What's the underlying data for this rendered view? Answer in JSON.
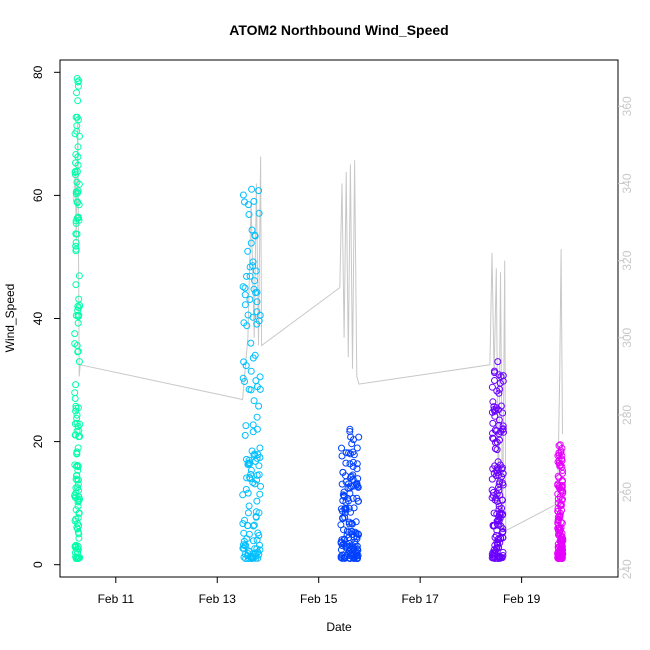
{
  "chart_data": {
    "type": "scatter",
    "title": "ATOM2 Northbound Wind_Speed",
    "xlabel": "Date",
    "ylabel": "Wind_Speed",
    "x_range": [
      "2024-02-09T21:36",
      "2024-02-20T21:36"
    ],
    "y_range": [
      -2,
      82
    ],
    "y_ticks": [
      0,
      20,
      40,
      60,
      80
    ],
    "x_ticks": [
      {
        "label": "Feb 11",
        "date": "2024-02-11"
      },
      {
        "label": "Feb 13",
        "date": "2024-02-13"
      },
      {
        "label": "Feb 15",
        "date": "2024-02-15"
      },
      {
        "label": "Feb 17",
        "date": "2024-02-17"
      },
      {
        "label": "Feb 19",
        "date": "2024-02-19"
      }
    ],
    "y2_range": [
      238,
      372
    ],
    "y2_ticks": [
      240,
      260,
      280,
      300,
      320,
      340,
      360
    ],
    "series": [
      {
        "color": "#00ffaa",
        "x_start": "2024-02-10T04:30",
        "x_end": "2024-02-10T07:00",
        "y_min": 1,
        "y_max": 79
      },
      {
        "color": "#00bfff",
        "x_start": "2024-02-13T12:00",
        "x_end": "2024-02-13T20:30",
        "y_min": 1,
        "y_max": 61
      },
      {
        "color": "#0040ff",
        "x_start": "2024-02-15T10:30",
        "x_end": "2024-02-15T19:00",
        "y_min": 1,
        "y_max": 22
      },
      {
        "color": "#6a00ff",
        "x_start": "2024-02-18T10:00",
        "x_end": "2024-02-18T15:30",
        "y_min": 1,
        "y_max": 33
      },
      {
        "color": "#e600ff",
        "x_start": "2024-02-19T17:00",
        "x_end": "2024-02-19T19:30",
        "y_min": 1,
        "y_max": 19.5
      }
    ],
    "secondary_line": {
      "color": "#c8c8c8",
      "points": [
        {
          "x": "2024-02-10T04:00",
          "y": 335
        },
        {
          "x": "2024-02-10T04:50",
          "y": 343
        },
        {
          "x": "2024-02-10T05:20",
          "y": 325
        },
        {
          "x": "2024-02-10T06:00",
          "y": 358
        },
        {
          "x": "2024-02-10T06:40",
          "y": 290
        },
        {
          "x": "2024-02-10T07:10",
          "y": 293
        },
        {
          "x": "2024-02-13T12:00",
          "y": 284
        },
        {
          "x": "2024-02-13T14:30",
          "y": 300
        },
        {
          "x": "2024-02-13T16:00",
          "y": 335
        },
        {
          "x": "2024-02-13T17:30",
          "y": 300
        },
        {
          "x": "2024-02-13T18:30",
          "y": 340
        },
        {
          "x": "2024-02-13T19:30",
          "y": 298
        },
        {
          "x": "2024-02-13T20:30",
          "y": 347
        },
        {
          "x": "2024-02-13T21:00",
          "y": 298
        },
        {
          "x": "2024-02-15T10:00",
          "y": 313
        },
        {
          "x": "2024-02-15T11:00",
          "y": 340
        },
        {
          "x": "2024-02-15T12:00",
          "y": 300
        },
        {
          "x": "2024-02-15T13:00",
          "y": 343
        },
        {
          "x": "2024-02-15T14:00",
          "y": 295
        },
        {
          "x": "2024-02-15T15:00",
          "y": 345
        },
        {
          "x": "2024-02-15T16:00",
          "y": 292
        },
        {
          "x": "2024-02-15T17:00",
          "y": 346
        },
        {
          "x": "2024-02-15T18:00",
          "y": 290
        },
        {
          "x": "2024-02-15T19:00",
          "y": 288
        },
        {
          "x": "2024-02-18T09:00",
          "y": 293
        },
        {
          "x": "2024-02-18T10:00",
          "y": 322
        },
        {
          "x": "2024-02-18T11:00",
          "y": 290
        },
        {
          "x": "2024-02-18T12:00",
          "y": 318
        },
        {
          "x": "2024-02-18T13:00",
          "y": 255
        },
        {
          "x": "2024-02-18T14:00",
          "y": 317
        },
        {
          "x": "2024-02-18T15:00",
          "y": 250
        },
        {
          "x": "2024-02-18T16:00",
          "y": 320
        },
        {
          "x": "2024-02-18T16:30",
          "y": 250
        },
        {
          "x": "2024-02-19T17:00",
          "y": 257
        },
        {
          "x": "2024-02-19T18:00",
          "y": 290
        },
        {
          "x": "2024-02-19T18:40",
          "y": 323
        },
        {
          "x": "2024-02-19T19:20",
          "y": 275
        }
      ]
    }
  }
}
